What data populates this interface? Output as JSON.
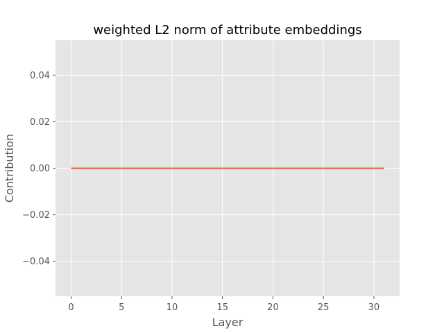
{
  "chart_data": {
    "type": "line",
    "title": "weighted L2 norm of attribute embeddings",
    "xlabel": "Layer",
    "ylabel": "Contribution",
    "xlim": [
      -1.55,
      32.55
    ],
    "ylim": [
      -0.055,
      0.055
    ],
    "x_ticks": [
      0,
      5,
      10,
      15,
      20,
      25,
      30
    ],
    "x_tick_labels": [
      "0",
      "5",
      "10",
      "15",
      "20",
      "25",
      "30"
    ],
    "y_ticks": [
      -0.04,
      -0.02,
      0.0,
      0.02,
      0.04
    ],
    "y_tick_labels": [
      "−0.04",
      "−0.02",
      "0.00",
      "0.02",
      "0.04"
    ],
    "grid": true,
    "style": "ggplot",
    "colors": {
      "plot_background": "#e5e5e5",
      "grid": "#ffffff",
      "line": "#e24a33",
      "tick": "#555555"
    },
    "series": [
      {
        "color": "#e24a33",
        "x": [
          0,
          1,
          2,
          3,
          4,
          5,
          6,
          7,
          8,
          9,
          10,
          11,
          12,
          13,
          14,
          15,
          16,
          17,
          18,
          19,
          20,
          21,
          22,
          23,
          24,
          25,
          26,
          27,
          28,
          29,
          30,
          31
        ],
        "y": [
          0,
          0,
          0,
          0,
          0,
          0,
          0,
          0,
          0,
          0,
          0,
          0,
          0,
          0,
          0,
          0,
          0,
          0,
          0,
          0,
          0,
          0,
          0,
          0,
          0,
          0,
          0,
          0,
          0,
          0,
          0,
          0
        ]
      }
    ]
  }
}
